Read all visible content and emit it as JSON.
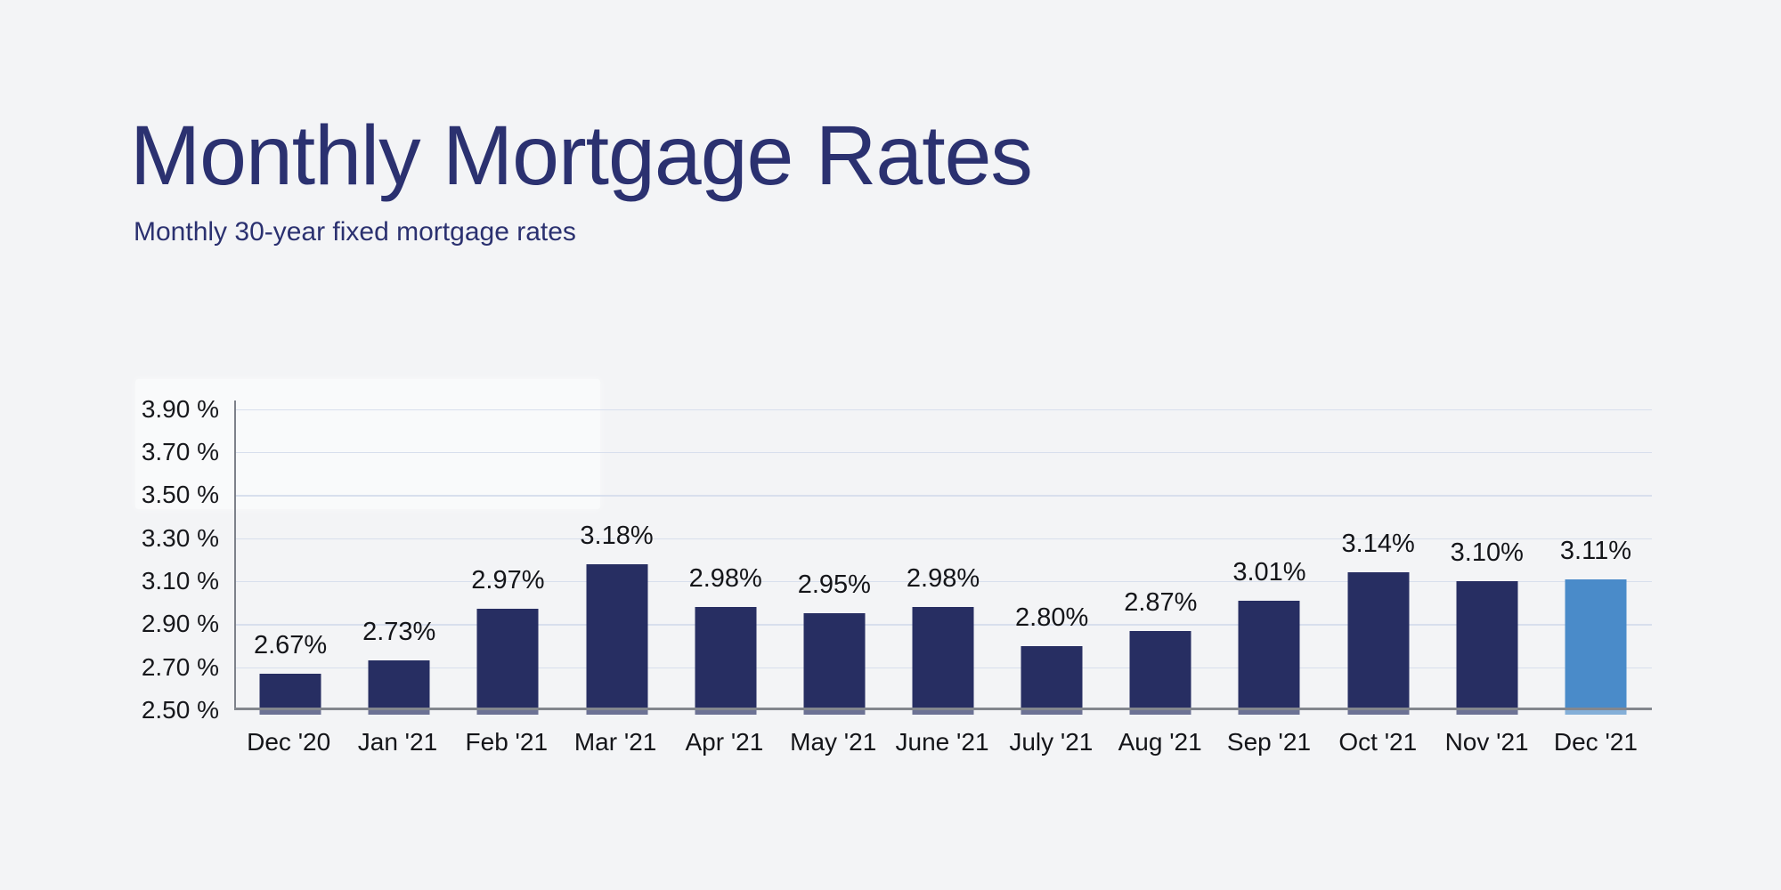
{
  "header": {
    "title": "Monthly Mortgage Rates",
    "subtitle": "Monthly 30-year fixed mortgage rates"
  },
  "chart_data": {
    "type": "bar",
    "title": "Monthly Mortgage Rates",
    "subtitle": "Monthly 30-year fixed mortgage rates",
    "xlabel": "",
    "ylabel": "",
    "categories": [
      "Dec '20",
      "Jan '21",
      "Feb '21",
      "Mar '21",
      "Apr '21",
      "May '21",
      "June '21",
      "July '21",
      "Aug '21",
      "Sep '21",
      "Oct '21",
      "Nov '21",
      "Dec '21"
    ],
    "values": [
      2.67,
      2.73,
      2.97,
      3.18,
      2.98,
      2.95,
      2.98,
      2.8,
      2.87,
      3.01,
      3.14,
      3.1,
      3.11
    ],
    "data_labels": [
      "2.67%",
      "2.73%",
      "2.97%",
      "3.18%",
      "2.98%",
      "2.95%",
      "2.98%",
      "2.80%",
      "2.87%",
      "3.01%",
      "3.14%",
      "3.10%",
      "3.11%"
    ],
    "highlight_index": 12,
    "y_ticks": [
      {
        "value": 3.9,
        "label": "3.90 %"
      },
      {
        "value": 3.7,
        "label": "3.70 %"
      },
      {
        "value": 3.5,
        "label": "3.50 %"
      },
      {
        "value": 3.3,
        "label": "3.30 %"
      },
      {
        "value": 3.1,
        "label": "3.10 %"
      },
      {
        "value": 2.9,
        "label": "2.90 %"
      },
      {
        "value": 2.7,
        "label": "2.70 %"
      },
      {
        "value": 2.5,
        "label": "2.50 %"
      }
    ],
    "ylim": [
      2.5,
      3.94
    ],
    "grid": true,
    "legend": "none",
    "colors": {
      "bar": "#272e62",
      "highlight_bar": "#4a8bc9",
      "grid": "#d8dfed",
      "axis_line": "#83878e",
      "y_axis_line": "#7d818a",
      "title": "#2b3170",
      "subtitle": "#2b3170",
      "label_text": "#141519",
      "background": "#f3f4f6"
    }
  }
}
